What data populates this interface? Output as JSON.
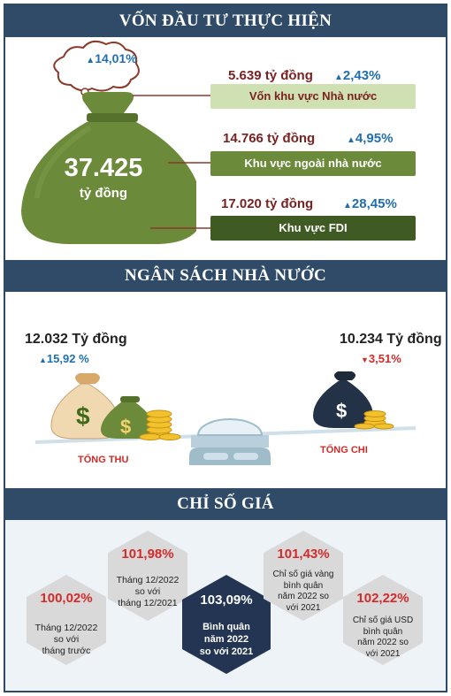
{
  "sections": {
    "investment_title": "VỐN ĐẦU TƯ THỰC HIỆN",
    "budget_title": "NGÂN SÁCH NHÀ NƯỚC",
    "price_title": "CHỈ SỐ GIÁ"
  },
  "investment": {
    "total_value": "37.425",
    "total_unit": "tỷ đồng",
    "total_growth": "14,01%",
    "items": [
      {
        "amount": "5.639 tỷ đồng",
        "growth": "2,43%",
        "label": "Vốn khu vực Nhà nước"
      },
      {
        "amount": "14.766 tỷ đồng",
        "growth": "4,95%",
        "label": "Khu vực ngoài nhà nước"
      },
      {
        "amount": "17.020 tỷ đồng",
        "growth": "28,45%",
        "label": "Khu vực FDI"
      }
    ]
  },
  "budget": {
    "revenue_value": "12.032 Tỷ đồng",
    "revenue_growth": "15,92 %",
    "revenue_label": "TỔNG THU",
    "expense_value": "10.234 Tỷ đồng",
    "expense_growth": "3,51%",
    "expense_label": "TỔNG CHI"
  },
  "prices": {
    "items": [
      {
        "value": "100,02%",
        "desc": [
          "Tháng 12/2022",
          "so với",
          "tháng trước"
        ]
      },
      {
        "value": "101,98%",
        "desc": [
          "Tháng 12/2022",
          "so với",
          "tháng 12/2021"
        ]
      },
      {
        "value": "103,09%",
        "desc": [
          "Bình quân",
          "năm 2022",
          "so với 2021"
        ]
      },
      {
        "value": "101,43%",
        "desc": [
          "Chỉ số giá vàng",
          "bình quân",
          "năm 2022 so",
          "với 2021"
        ]
      },
      {
        "value": "102,22%",
        "desc": [
          "Chỉ số giá USD",
          "bình quân",
          "năm 2022 so",
          "với 2021"
        ]
      }
    ]
  },
  "colors": {
    "header": "#2f4b67",
    "bag": "#6b8a3a",
    "accent_red": "#d42a2a",
    "growth_blue": "#1f6fb0"
  }
}
